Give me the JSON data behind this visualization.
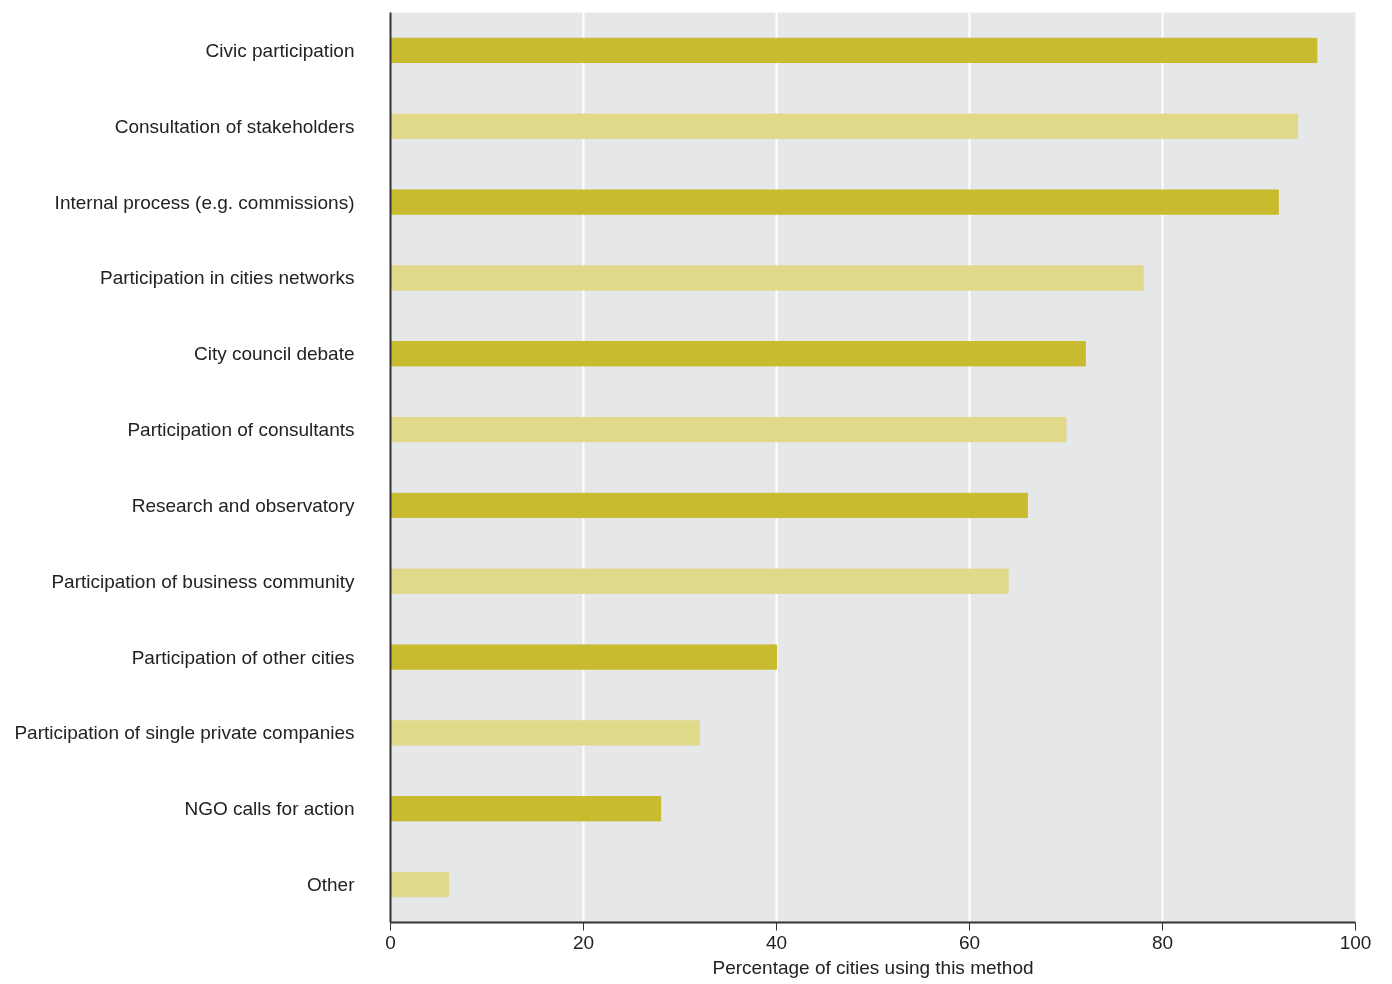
{
  "chart_data": {
    "type": "bar",
    "orientation": "horizontal",
    "xlabel": "Percentage of cities using this method",
    "categories": [
      "Civic participation",
      "Consultation of stakeholders",
      "Internal process (e.g. commissions)",
      "Participation in cities networks",
      "City council debate",
      "Participation of consultants",
      "Research and observatory",
      "Participation of business community",
      "Participation of other cities",
      "Participation of single private companies",
      "NGO calls for action",
      "Other"
    ],
    "values": [
      96,
      94,
      92,
      78,
      72,
      70,
      66,
      64,
      40,
      32,
      28,
      6
    ],
    "colors": [
      "#c9bb2f",
      "#e0d98a",
      "#c9bb2f",
      "#e0d98a",
      "#c9bb2f",
      "#e0d98a",
      "#c9bb2f",
      "#e0d98a",
      "#c9bb2f",
      "#e0d98a",
      "#c9bb2f",
      "#e0d98a"
    ],
    "xlim": [
      0,
      100
    ],
    "xticks": [
      0,
      20,
      40,
      60,
      80,
      100
    ],
    "grid": "x"
  }
}
